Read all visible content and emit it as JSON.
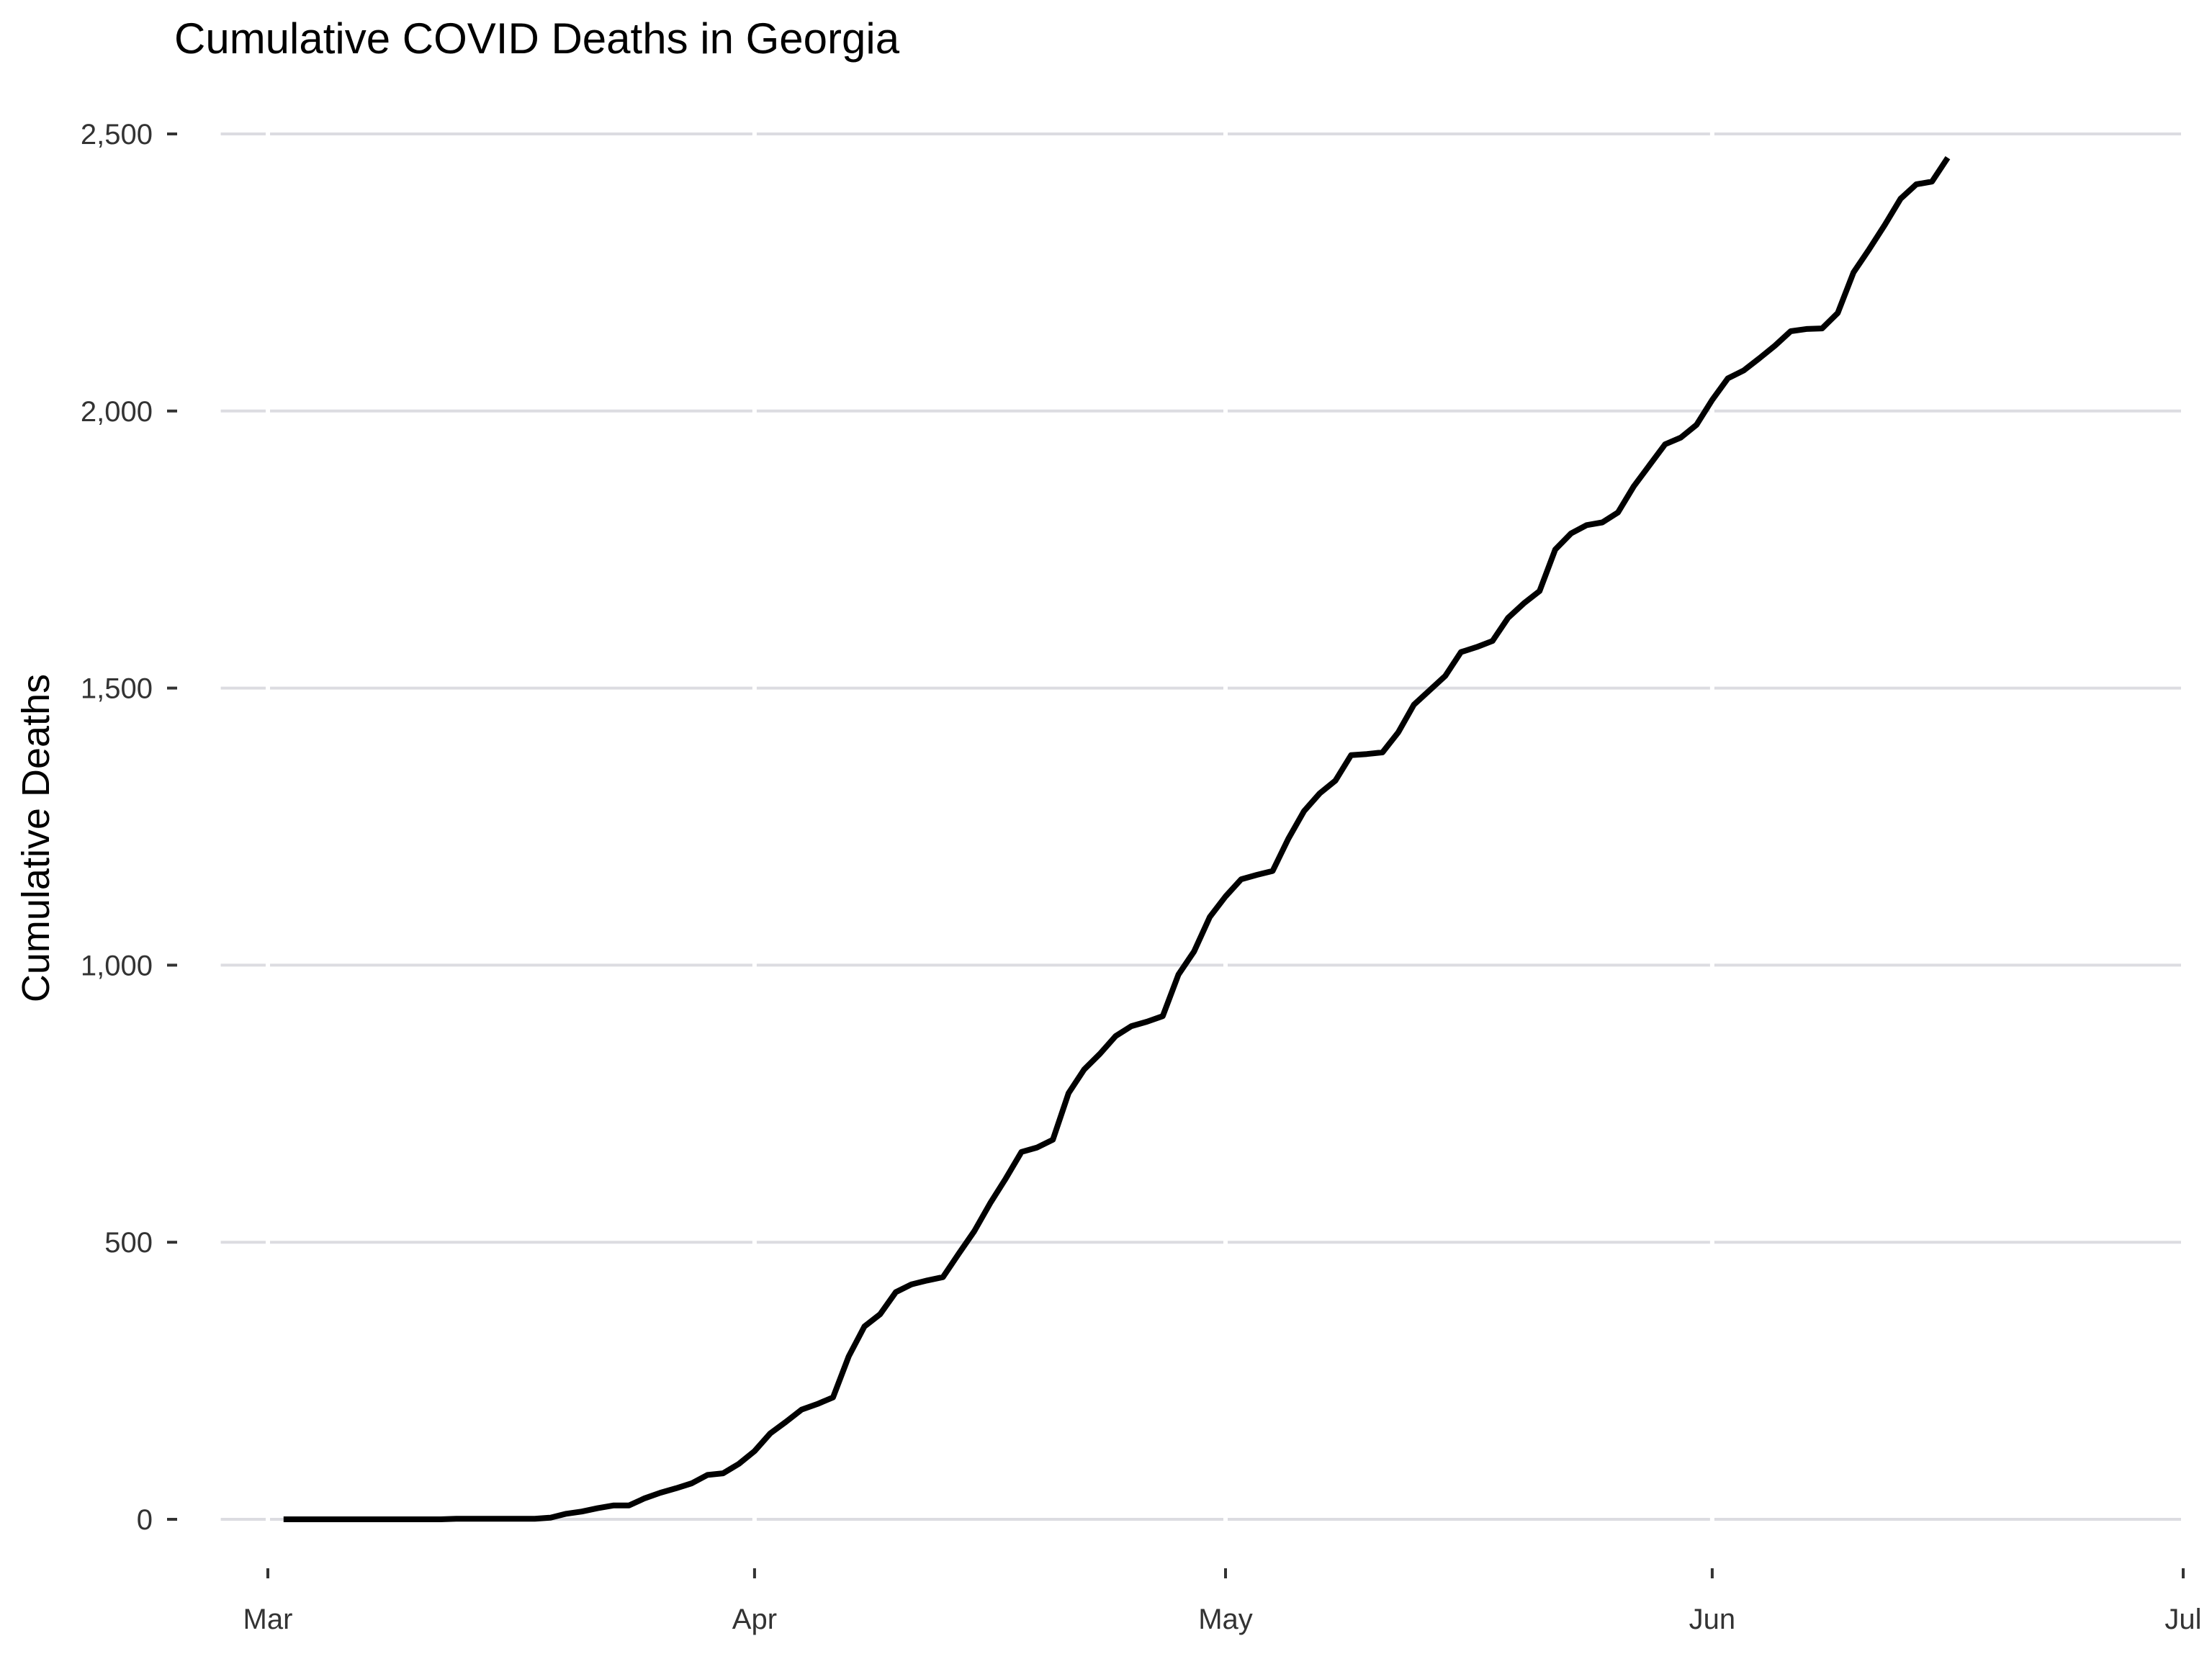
{
  "chart_data": {
    "type": "line",
    "title": "Cumulative COVID Deaths in Georgia",
    "xlabel": "",
    "ylabel": "Cumulative Deaths",
    "x_range": [
      "2020-03-01",
      "2020-07-01"
    ],
    "ylim": [
      0,
      2500
    ],
    "x_ticks": [
      {
        "date": "2020-03-01",
        "label": "Mar"
      },
      {
        "date": "2020-04-01",
        "label": "Apr"
      },
      {
        "date": "2020-05-01",
        "label": "May"
      },
      {
        "date": "2020-06-01",
        "label": "Jun"
      },
      {
        "date": "2020-07-01",
        "label": "Jul"
      }
    ],
    "y_ticks": [
      {
        "value": 0,
        "label": "0"
      },
      {
        "value": 500,
        "label": "500"
      },
      {
        "value": 1000,
        "label": "1,000"
      },
      {
        "value": 1500,
        "label": "1,500"
      },
      {
        "value": 2000,
        "label": "2,000"
      },
      {
        "value": 2500,
        "label": "2,500"
      }
    ],
    "grid": "horizontal",
    "legend": "none",
    "line_color": "#000000",
    "grid_color": "#dcdce1",
    "series": [
      {
        "points": [
          [
            "2020-03-02",
            0
          ],
          [
            "2020-03-12",
            0
          ],
          [
            "2020-03-13",
            1
          ],
          [
            "2020-03-18",
            1
          ],
          [
            "2020-03-19",
            3
          ],
          [
            "2020-03-20",
            10
          ],
          [
            "2020-03-21",
            14
          ],
          [
            "2020-03-22",
            20
          ],
          [
            "2020-03-23",
            25
          ],
          [
            "2020-03-24",
            25
          ],
          [
            "2020-03-25",
            38
          ],
          [
            "2020-03-26",
            48
          ],
          [
            "2020-03-27",
            56
          ],
          [
            "2020-03-28",
            65
          ],
          [
            "2020-03-29",
            80
          ],
          [
            "2020-03-30",
            83
          ],
          [
            "2020-03-31",
            100
          ],
          [
            "2020-04-01",
            123
          ],
          [
            "2020-04-02",
            155
          ],
          [
            "2020-04-03",
            176
          ],
          [
            "2020-04-04",
            198
          ],
          [
            "2020-04-05",
            208
          ],
          [
            "2020-04-06",
            220
          ],
          [
            "2020-04-07",
            294
          ],
          [
            "2020-04-08",
            348
          ],
          [
            "2020-04-09",
            370
          ],
          [
            "2020-04-10",
            410
          ],
          [
            "2020-04-11",
            424
          ],
          [
            "2020-04-12",
            431
          ],
          [
            "2020-04-13",
            437
          ],
          [
            "2020-04-14",
            479
          ],
          [
            "2020-04-15",
            520
          ],
          [
            "2020-04-16",
            570
          ],
          [
            "2020-04-17",
            615
          ],
          [
            "2020-04-18",
            663
          ],
          [
            "2020-04-19",
            671
          ],
          [
            "2020-04-20",
            685
          ],
          [
            "2020-04-21",
            769
          ],
          [
            "2020-04-22",
            812
          ],
          [
            "2020-04-23",
            840
          ],
          [
            "2020-04-24",
            872
          ],
          [
            "2020-04-25",
            890
          ],
          [
            "2020-04-26",
            898
          ],
          [
            "2020-04-27",
            908
          ],
          [
            "2020-04-28",
            983
          ],
          [
            "2020-04-29",
            1025
          ],
          [
            "2020-04-30",
            1087
          ],
          [
            "2020-05-01",
            1124
          ],
          [
            "2020-05-02",
            1155
          ],
          [
            "2020-05-03",
            1163
          ],
          [
            "2020-05-04",
            1170
          ],
          [
            "2020-05-05",
            1228
          ],
          [
            "2020-05-06",
            1278
          ],
          [
            "2020-05-07",
            1310
          ],
          [
            "2020-05-08",
            1333
          ],
          [
            "2020-05-09",
            1379
          ],
          [
            "2020-05-10",
            1381
          ],
          [
            "2020-05-11",
            1384
          ],
          [
            "2020-05-12",
            1420
          ],
          [
            "2020-05-13",
            1470
          ],
          [
            "2020-05-14",
            1496
          ],
          [
            "2020-05-15",
            1522
          ],
          [
            "2020-05-16",
            1565
          ],
          [
            "2020-05-17",
            1574
          ],
          [
            "2020-05-18",
            1585
          ],
          [
            "2020-05-19",
            1627
          ],
          [
            "2020-05-20",
            1653
          ],
          [
            "2020-05-21",
            1675
          ],
          [
            "2020-05-22",
            1750
          ],
          [
            "2020-05-23",
            1779
          ],
          [
            "2020-05-24",
            1794
          ],
          [
            "2020-05-25",
            1799
          ],
          [
            "2020-05-26",
            1817
          ],
          [
            "2020-05-27",
            1864
          ],
          [
            "2020-05-28",
            1902
          ],
          [
            "2020-05-29",
            1940
          ],
          [
            "2020-05-30",
            1952
          ],
          [
            "2020-05-31",
            1975
          ],
          [
            "2020-06-01",
            2020
          ],
          [
            "2020-06-02",
            2059
          ],
          [
            "2020-06-03",
            2073
          ],
          [
            "2020-06-04",
            2095
          ],
          [
            "2020-06-05",
            2118
          ],
          [
            "2020-06-06",
            2144
          ],
          [
            "2020-06-07",
            2148
          ],
          [
            "2020-06-08",
            2149
          ],
          [
            "2020-06-09",
            2177
          ],
          [
            "2020-06-10",
            2250
          ],
          [
            "2020-06-11",
            2292
          ],
          [
            "2020-06-12",
            2336
          ],
          [
            "2020-06-13",
            2383
          ],
          [
            "2020-06-14",
            2409
          ],
          [
            "2020-06-15",
            2414
          ],
          [
            "2020-06-16",
            2457
          ]
        ]
      }
    ]
  }
}
